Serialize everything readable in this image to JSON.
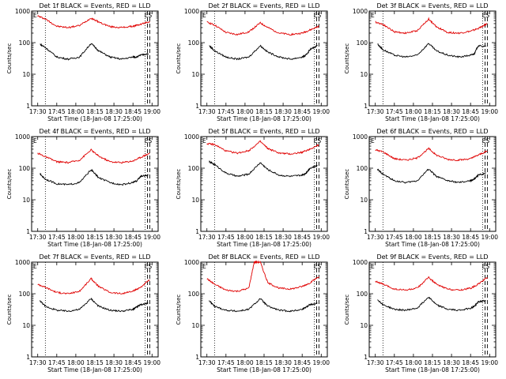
{
  "colors": {
    "events": "#000000",
    "lld": "#e00000",
    "axes": "#000000"
  },
  "chart_data": [
    {
      "type": "line",
      "title": "Det 1f BLACK = Events, RED = LLD",
      "xlabel": "Start Time (18-Jan-08 17:25:00)",
      "ylabel": "Counts/sec",
      "x_tick_labels": [
        "17:30",
        "17:45",
        "18:00",
        "18:15",
        "18:30",
        "18:45",
        "19:00"
      ],
      "y_tick_labels": [
        "1",
        "10",
        "100",
        "1000"
      ],
      "y_scale": "log",
      "ylim": [
        1,
        1000
      ],
      "corner_labels": [
        "E",
        "ES"
      ],
      "series": [
        {
          "color": "#e00000",
          "x_min": [
            17.5,
            17.6,
            17.75,
            17.9,
            18.05,
            18.2,
            18.3,
            18.45,
            18.6,
            18.75,
            18.85,
            18.97
          ],
          "values": [
            700,
            560,
            330,
            300,
            350,
            600,
            450,
            320,
            300,
            330,
            380,
            470
          ]
        },
        {
          "color": "#000000",
          "x_min": [
            17.53,
            17.6,
            17.75,
            17.9,
            18.05,
            18.2,
            18.3,
            18.45,
            18.6,
            18.75,
            18.8,
            18.85,
            18.95
          ],
          "values": [
            90,
            70,
            35,
            30,
            35,
            95,
            55,
            35,
            30,
            35,
            35,
            40,
            45
          ]
        }
      ]
    },
    {
      "type": "line",
      "title": "Det 2f BLACK = Events, RED = LLD",
      "xlabel": "Start Time (18-Jan-08 17:25:00)",
      "ylabel": "Counts/sec",
      "x_tick_labels": [
        "17:30",
        "17:45",
        "18:00",
        "18:15",
        "18:30",
        "18:45",
        "19:00"
      ],
      "y_tick_labels": [
        "1",
        "10",
        "100",
        "1000"
      ],
      "y_scale": "log",
      "ylim": [
        1,
        1000
      ],
      "corner_labels": [
        "E",
        "ES"
      ],
      "series": [
        {
          "color": "#e00000",
          "x_min": [
            17.5,
            17.6,
            17.75,
            17.9,
            18.05,
            18.2,
            18.3,
            18.45,
            18.6,
            18.75,
            18.85,
            18.97
          ],
          "values": [
            450,
            360,
            210,
            180,
            220,
            420,
            300,
            200,
            180,
            200,
            250,
            330
          ]
        },
        {
          "color": "#000000",
          "x_min": [
            17.53,
            17.6,
            17.75,
            17.9,
            18.05,
            18.2,
            18.3,
            18.45,
            18.6,
            18.75,
            18.8,
            18.85,
            18.95
          ],
          "values": [
            80,
            55,
            35,
            30,
            35,
            80,
            50,
            35,
            30,
            35,
            40,
            60,
            80
          ]
        }
      ]
    },
    {
      "type": "line",
      "title": "Det 3f BLACK = Events, RED = LLD",
      "xlabel": "Start Time (18-Jan-08 17:25:00)",
      "ylabel": "Counts/sec",
      "x_tick_labels": [
        "17:30",
        "17:45",
        "18:00",
        "18:15",
        "18:30",
        "18:45",
        "19:00"
      ],
      "y_tick_labels": [
        "1",
        "10",
        "100",
        "1000"
      ],
      "y_scale": "log",
      "ylim": [
        1,
        1000
      ],
      "corner_labels": [
        "E",
        "ES"
      ],
      "series": [
        {
          "color": "#e00000",
          "x_min": [
            17.5,
            17.6,
            17.75,
            17.9,
            18.05,
            18.2,
            18.3,
            18.45,
            18.6,
            18.75,
            18.85,
            18.97
          ],
          "values": [
            450,
            380,
            220,
            200,
            240,
            560,
            320,
            210,
            200,
            230,
            280,
            400
          ]
        },
        {
          "color": "#000000",
          "x_min": [
            17.53,
            17.6,
            17.75,
            17.9,
            18.05,
            18.2,
            18.3,
            18.45,
            18.6,
            18.75,
            18.8,
            18.85,
            18.95
          ],
          "values": [
            90,
            60,
            40,
            35,
            40,
            95,
            55,
            40,
            35,
            40,
            45,
            80,
            75
          ]
        }
      ]
    },
    {
      "type": "line",
      "title": "Det 4f BLACK = Events, RED = LLD",
      "xlabel": "Start Time (18-Jan-08 17:25:00)",
      "ylabel": "Counts/sec",
      "x_tick_labels": [
        "17:30",
        "17:45",
        "18:00",
        "18:15",
        "18:30",
        "18:45",
        "19:00"
      ],
      "y_tick_labels": [
        "1",
        "10",
        "100",
        "1000"
      ],
      "y_scale": "log",
      "ylim": [
        1,
        1000
      ],
      "corner_labels": [
        "E",
        "ES"
      ],
      "series": [
        {
          "color": "#e00000",
          "x_min": [
            17.5,
            17.6,
            17.75,
            17.9,
            18.05,
            18.2,
            18.3,
            18.45,
            18.6,
            18.75,
            18.85,
            18.97
          ],
          "values": [
            300,
            230,
            160,
            150,
            180,
            380,
            240,
            160,
            150,
            170,
            220,
            300
          ]
        },
        {
          "color": "#000000",
          "x_min": [
            17.53,
            17.6,
            17.75,
            17.9,
            18.05,
            18.2,
            18.3,
            18.45,
            18.6,
            18.75,
            18.8,
            18.85,
            18.95
          ],
          "values": [
            65,
            45,
            32,
            30,
            35,
            90,
            50,
            35,
            30,
            35,
            40,
            55,
            60
          ]
        }
      ]
    },
    {
      "type": "line",
      "title": "Det 5f BLACK = Events, RED = LLD",
      "xlabel": "Start Time (18-Jan-08 17:25:00)",
      "ylabel": "Counts/sec",
      "x_tick_labels": [
        "17:30",
        "17:45",
        "18:00",
        "18:15",
        "18:30",
        "18:45",
        "19:00"
      ],
      "y_tick_labels": [
        "1",
        "10",
        "100",
        "1000"
      ],
      "y_scale": "log",
      "ylim": [
        1,
        1000
      ],
      "corner_labels": [
        "E",
        "ES"
      ],
      "series": [
        {
          "color": "#e00000",
          "x_min": [
            17.5,
            17.6,
            17.75,
            17.9,
            18.05,
            18.2,
            18.3,
            18.45,
            18.6,
            18.75,
            18.85,
            18.97
          ],
          "values": [
            600,
            560,
            350,
            300,
            360,
            700,
            420,
            300,
            280,
            320,
            400,
            550
          ]
        },
        {
          "color": "#000000",
          "x_min": [
            17.53,
            17.6,
            17.75,
            17.9,
            18.05,
            18.2,
            18.3,
            18.45,
            18.6,
            18.75,
            18.8,
            18.85,
            18.95
          ],
          "values": [
            160,
            130,
            70,
            55,
            65,
            150,
            90,
            60,
            55,
            60,
            70,
            100,
            120
          ]
        }
      ]
    },
    {
      "type": "line",
      "title": "Det 6f BLACK = Events, RED = LLD",
      "xlabel": "Start Time (18-Jan-08 17:25:00)",
      "ylabel": "Counts/sec",
      "x_tick_labels": [
        "17:30",
        "17:45",
        "18:00",
        "18:15",
        "18:30",
        "18:45",
        "19:00"
      ],
      "y_tick_labels": [
        "1",
        "10",
        "100",
        "1000"
      ],
      "y_scale": "log",
      "ylim": [
        1,
        1000
      ],
      "corner_labels": [
        "E",
        "ES"
      ],
      "series": [
        {
          "color": "#e00000",
          "x_min": [
            17.5,
            17.6,
            17.75,
            17.9,
            18.05,
            18.2,
            18.3,
            18.45,
            18.6,
            18.75,
            18.85,
            18.97
          ],
          "values": [
            380,
            330,
            200,
            180,
            210,
            420,
            260,
            190,
            180,
            200,
            260,
            350
          ]
        },
        {
          "color": "#000000",
          "x_min": [
            17.53,
            17.6,
            17.75,
            17.9,
            18.05,
            18.2,
            18.3,
            18.45,
            18.6,
            18.75,
            18.8,
            18.85,
            18.95
          ],
          "values": [
            90,
            65,
            40,
            35,
            40,
            95,
            55,
            40,
            35,
            40,
            45,
            60,
            70
          ]
        }
      ]
    },
    {
      "type": "line",
      "title": "Det 7f BLACK = Events, RED = LLD",
      "xlabel": "Start Time (18-Jan-08 17:25:00)",
      "ylabel": "Counts/sec",
      "x_tick_labels": [
        "17:30",
        "17:45",
        "18:00",
        "18:15",
        "18:30",
        "18:45",
        "19:00"
      ],
      "y_tick_labels": [
        "1",
        "10",
        "100",
        "1000"
      ],
      "y_scale": "log",
      "ylim": [
        1,
        1000
      ],
      "corner_labels": [
        "E",
        "ES"
      ],
      "series": [
        {
          "color": "#e00000",
          "x_min": [
            17.5,
            17.6,
            17.75,
            17.9,
            18.05,
            18.2,
            18.3,
            18.45,
            18.6,
            18.75,
            18.85,
            18.97
          ],
          "values": [
            200,
            160,
            110,
            100,
            120,
            300,
            170,
            110,
            100,
            120,
            160,
            280
          ]
        },
        {
          "color": "#000000",
          "x_min": [
            17.53,
            17.6,
            17.75,
            17.9,
            18.05,
            18.2,
            18.3,
            18.45,
            18.6,
            18.75,
            18.8,
            18.85,
            18.95
          ],
          "values": [
            60,
            40,
            30,
            28,
            32,
            70,
            40,
            30,
            28,
            32,
            38,
            45,
            50
          ]
        }
      ]
    },
    {
      "type": "line",
      "title": "Det 8f BLACK = Events, RED = LLD",
      "xlabel": "Start Time (18-Jan-08 17:25:00)",
      "ylabel": "Counts/sec",
      "x_tick_labels": [
        "17:30",
        "17:45",
        "18:00",
        "18:15",
        "18:30",
        "18:45",
        "19:00"
      ],
      "y_tick_labels": [
        "1",
        "10",
        "100",
        "1000"
      ],
      "y_scale": "log",
      "ylim": [
        1,
        1000
      ],
      "corner_labels": [
        "E",
        "ES"
      ],
      "series": [
        {
          "color": "#e00000",
          "x_min": [
            17.5,
            17.6,
            17.75,
            17.9,
            18.05,
            18.12,
            18.2,
            18.3,
            18.45,
            18.6,
            18.75,
            18.85,
            18.97
          ],
          "values": [
            300,
            200,
            130,
            120,
            150,
            1000,
            1000,
            220,
            150,
            140,
            170,
            220,
            350
          ]
        },
        {
          "color": "#000000",
          "x_min": [
            17.53,
            17.6,
            17.75,
            17.9,
            18.05,
            18.2,
            18.3,
            18.45,
            18.6,
            18.75,
            18.8,
            18.85,
            18.95
          ],
          "values": [
            60,
            40,
            30,
            28,
            32,
            70,
            40,
            30,
            28,
            32,
            38,
            45,
            50
          ]
        }
      ]
    },
    {
      "type": "line",
      "title": "Det 9f BLACK = Events, RED = LLD",
      "xlabel": "Start Time (18-Jan-08 17:25:00)",
      "ylabel": "Counts/sec",
      "x_tick_labels": [
        "17:30",
        "17:45",
        "18:00",
        "18:15",
        "18:30",
        "18:45",
        "19:00"
      ],
      "y_tick_labels": [
        "1",
        "10",
        "100",
        "1000"
      ],
      "y_scale": "log",
      "ylim": [
        1,
        1000
      ],
      "corner_labels": [
        "E",
        "ES"
      ],
      "series": [
        {
          "color": "#e00000",
          "x_min": [
            17.5,
            17.6,
            17.75,
            17.9,
            18.05,
            18.2,
            18.3,
            18.45,
            18.6,
            18.75,
            18.85,
            18.97
          ],
          "values": [
            250,
            200,
            140,
            130,
            150,
            330,
            200,
            140,
            130,
            150,
            200,
            330
          ]
        },
        {
          "color": "#000000",
          "x_min": [
            17.53,
            17.6,
            17.75,
            17.9,
            18.05,
            18.2,
            18.3,
            18.45,
            18.6,
            18.75,
            18.8,
            18.85,
            18.95
          ],
          "values": [
            65,
            45,
            32,
            30,
            35,
            80,
            45,
            32,
            30,
            35,
            40,
            55,
            60
          ]
        }
      ]
    }
  ]
}
